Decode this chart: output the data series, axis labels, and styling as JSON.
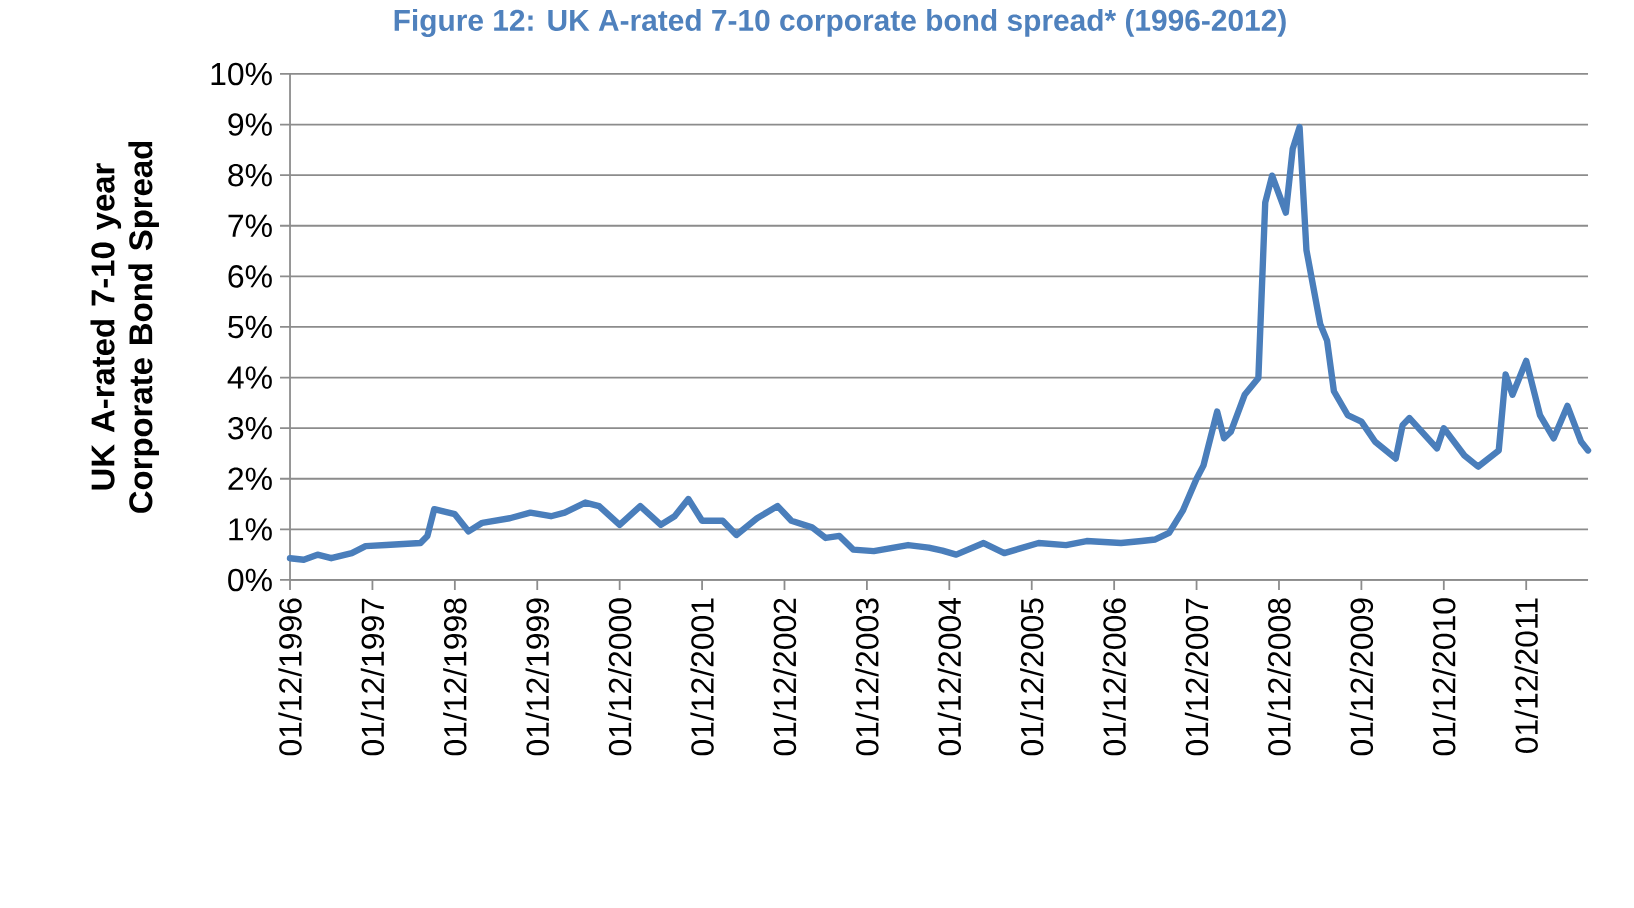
{
  "chart_data": {
    "type": "line",
    "title": "Figure 12: UK A-rated 7-10 corporate bond spread* (1996-2012)",
    "ylabel": "UK A-rated 7-10 year Corporate Bond Spread",
    "x": [
      "1996-12",
      "1997-02",
      "1997-04",
      "1997-06",
      "1997-09",
      "1997-11",
      "1998-02",
      "1998-07",
      "1998-08",
      "1998-09",
      "1998-12",
      "1999-02",
      "1999-04",
      "1999-08",
      "1999-11",
      "2000-02",
      "2000-04",
      "2000-07",
      "2000-09",
      "2000-12",
      "2001-03",
      "2001-06",
      "2001-08",
      "2001-10",
      "2001-12",
      "2002-03",
      "2002-05",
      "2002-08",
      "2002-11",
      "2003-01",
      "2003-04",
      "2003-06",
      "2003-08",
      "2003-10",
      "2004-01",
      "2004-06",
      "2004-09",
      "2004-11",
      "2005-01",
      "2005-05",
      "2005-08",
      "2006-01",
      "2006-05",
      "2006-08",
      "2007-01",
      "2007-04",
      "2007-06",
      "2007-08",
      "2007-10",
      "2007-12",
      "2008-01",
      "2008-03",
      "2008-04",
      "2008-05",
      "2008-07",
      "2008-09",
      "2008-10",
      "2008-11",
      "2009-01",
      "2009-02",
      "2009-03",
      "2009-04",
      "2009-06",
      "2009-07",
      "2009-08",
      "2009-10",
      "2009-12",
      "2010-02",
      "2010-05",
      "2010-06",
      "2010-07",
      "2010-11",
      "2010-12",
      "2011-03",
      "2011-05",
      "2011-08",
      "2011-09",
      "2011-10",
      "2011-12",
      "2012-02",
      "2012-04",
      "2012-06",
      "2012-08",
      "2012-09"
    ],
    "series": [
      {
        "color": "#4a7ebb",
        "values": [
          0.43,
          0.4,
          0.5,
          0.43,
          0.53,
          0.67,
          0.69,
          0.73,
          0.87,
          1.4,
          1.3,
          0.96,
          1.13,
          1.22,
          1.33,
          1.26,
          1.33,
          1.53,
          1.46,
          1.09,
          1.46,
          1.09,
          1.26,
          1.6,
          1.17,
          1.17,
          0.89,
          1.22,
          1.46,
          1.17,
          1.04,
          0.83,
          0.87,
          0.6,
          0.57,
          0.69,
          0.64,
          0.58,
          0.5,
          0.73,
          0.53,
          0.73,
          0.69,
          0.77,
          0.73,
          0.77,
          0.8,
          0.93,
          1.37,
          2.0,
          2.26,
          3.33,
          2.8,
          2.93,
          3.66,
          3.99,
          7.46,
          7.99,
          7.26,
          8.52,
          8.95,
          6.52,
          5.06,
          4.73,
          3.73,
          3.26,
          3.13,
          2.73,
          2.4,
          3.06,
          3.2,
          2.6,
          3.0,
          2.46,
          2.24,
          2.56,
          4.06,
          3.66,
          4.33,
          3.26,
          2.8,
          3.44,
          2.73,
          2.56
        ]
      }
    ],
    "xlim": [
      "1996-12",
      "2012-09"
    ],
    "xticks": [
      {
        "value": "1996-12",
        "label": "01/12/1996"
      },
      {
        "value": "1997-12",
        "label": "01/12/1997"
      },
      {
        "value": "1998-12",
        "label": "01/12/1998"
      },
      {
        "value": "1999-12",
        "label": "01/12/1999"
      },
      {
        "value": "2000-12",
        "label": "01/12/2000"
      },
      {
        "value": "2001-12",
        "label": "01/12/2001"
      },
      {
        "value": "2002-12",
        "label": "01/12/2002"
      },
      {
        "value": "2003-12",
        "label": "01/12/2003"
      },
      {
        "value": "2004-12",
        "label": "01/12/2004"
      },
      {
        "value": "2005-12",
        "label": "01/12/2005"
      },
      {
        "value": "2006-12",
        "label": "01/12/2006"
      },
      {
        "value": "2007-12",
        "label": "01/12/2007"
      },
      {
        "value": "2008-12",
        "label": "01/12/2008"
      },
      {
        "value": "2009-12",
        "label": "01/12/2009"
      },
      {
        "value": "2010-12",
        "label": "01/12/2010"
      },
      {
        "value": "2011-12",
        "label": "01/12/2011"
      }
    ],
    "ylim": [
      0,
      10
    ],
    "yticks": [
      {
        "value": 0,
        "label": "0%"
      },
      {
        "value": 1,
        "label": "1%"
      },
      {
        "value": 2,
        "label": "2%"
      },
      {
        "value": 3,
        "label": "3%"
      },
      {
        "value": 4,
        "label": "4%"
      },
      {
        "value": 5,
        "label": "5%"
      },
      {
        "value": 6,
        "label": "6%"
      },
      {
        "value": 7,
        "label": "7%"
      },
      {
        "value": 8,
        "label": "8%"
      },
      {
        "value": 9,
        "label": "9%"
      },
      {
        "value": 10,
        "label": "10%"
      }
    ],
    "grid": "y",
    "marker": "none",
    "line_style": "solid"
  }
}
